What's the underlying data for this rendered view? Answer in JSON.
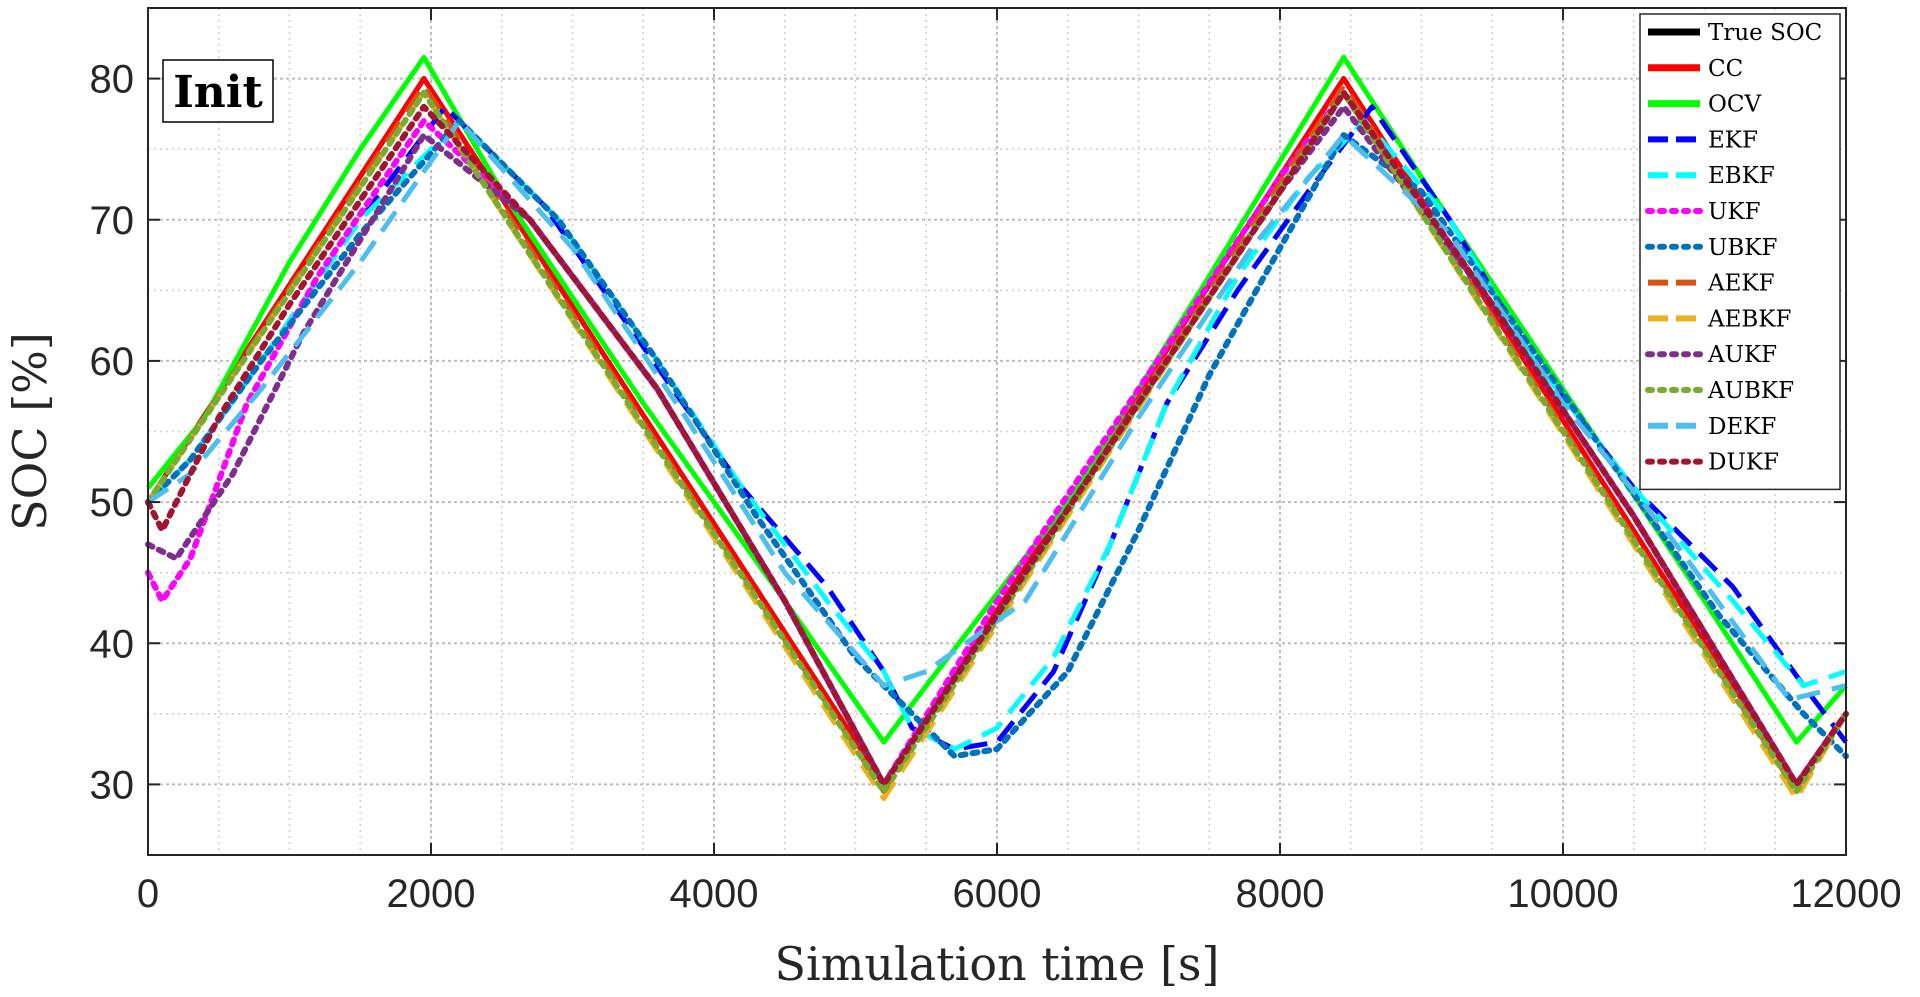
{
  "chart_data": {
    "type": "line",
    "xlabel": "Simulation time [s]",
    "ylabel": "SOC [%]",
    "xlim": [
      0,
      12000
    ],
    "ylim": [
      25,
      85
    ],
    "xticks": [
      0,
      2000,
      4000,
      6000,
      8000,
      10000,
      12000
    ],
    "yticks": [
      30,
      40,
      50,
      60,
      70,
      80
    ],
    "grid": true,
    "legend_position": "top-right",
    "annotation": "Init",
    "series": [
      {
        "name": "True SOC",
        "color": "#000000",
        "style": "solid",
        "x": [
          0,
          1950,
          5200,
          8450,
          11650,
          12000
        ],
        "y": [
          50,
          80,
          30,
          80,
          30,
          35
        ]
      },
      {
        "name": "CC",
        "color": "#ff0000",
        "style": "solid",
        "x": [
          0,
          1950,
          5200,
          8450,
          11650,
          12000
        ],
        "y": [
          50,
          80,
          30,
          80,
          30,
          35
        ]
      },
      {
        "name": "OCV",
        "color": "#00ff00",
        "style": "solid",
        "x": [
          0,
          400,
          1000,
          1500,
          1950,
          2500,
          3500,
          4500,
          5200,
          5500,
          6500,
          7500,
          8450,
          9000,
          10000,
          11000,
          11650,
          12000
        ],
        "y": [
          51,
          56,
          67,
          75,
          81.5,
          72,
          57,
          43,
          33,
          37,
          50,
          66,
          81.5,
          73,
          58,
          43,
          33,
          37
        ]
      },
      {
        "name": "EKF",
        "color": "#0000ff",
        "style": "dash",
        "x": [
          0,
          300,
          800,
          1500,
          2100,
          2800,
          3500,
          4200,
          4800,
          5200,
          5400,
          5700,
          6000,
          6400,
          6800,
          7200,
          7700,
          8200,
          8650,
          9200,
          9800,
          10500,
          11200,
          11700,
          12000
        ],
        "y": [
          50,
          53,
          60,
          70,
          78,
          71,
          61,
          51,
          44,
          38,
          34,
          32.5,
          33,
          38,
          47,
          57,
          65,
          72,
          78,
          70,
          60,
          51,
          44,
          37,
          33
        ]
      },
      {
        "name": "EBKF",
        "color": "#00ffff",
        "style": "dash",
        "x": [
          0,
          300,
          800,
          1500,
          2200,
          2900,
          3600,
          4200,
          4800,
          5200,
          5400,
          5700,
          6000,
          6400,
          6800,
          7200,
          7700,
          8200,
          8600,
          9200,
          9800,
          10500,
          11200,
          11700,
          12000
        ],
        "y": [
          50,
          53,
          60,
          70,
          77,
          70,
          60,
          51,
          43,
          38,
          34,
          32.5,
          34,
          39,
          47,
          57,
          66,
          73,
          77,
          70,
          60,
          51,
          43,
          37,
          38
        ]
      },
      {
        "name": "UKF",
        "color": "#ff00ff",
        "style": "dot",
        "x": [
          0,
          100,
          300,
          700,
          1200,
          1950,
          2700,
          3600,
          4500,
          5200,
          6000,
          7000,
          8000,
          8450,
          9500,
          10500,
          11650,
          12000
        ],
        "y": [
          45,
          43,
          46,
          57,
          66,
          77,
          70,
          58,
          43,
          30,
          43,
          58,
          73,
          79,
          64,
          49,
          30,
          35
        ]
      },
      {
        "name": "UBKF",
        "color": "#0072bd",
        "style": "dot",
        "x": [
          0,
          300,
          800,
          1500,
          2200,
          2900,
          3600,
          4300,
          5000,
          5500,
          5700,
          6000,
          6500,
          7000,
          7500,
          8000,
          8450,
          9000,
          9700,
          10400,
          11100,
          11700,
          12000
        ],
        "y": [
          50,
          53,
          60,
          69,
          77,
          70,
          60,
          49,
          39,
          34,
          32,
          32.5,
          38,
          48,
          59,
          68,
          76,
          72,
          62,
          52,
          42,
          35,
          32
        ]
      },
      {
        "name": "AEKF",
        "color": "#d95319",
        "style": "dash",
        "x": [
          0,
          1950,
          5200,
          8450,
          11650,
          12000
        ],
        "y": [
          50,
          79.5,
          29.5,
          79.5,
          29.5,
          35
        ]
      },
      {
        "name": "AEBKF",
        "color": "#edb120",
        "style": "dash",
        "x": [
          0,
          1950,
          5200,
          8450,
          11650,
          12000
        ],
        "y": [
          50,
          79,
          29,
          79,
          29,
          35
        ]
      },
      {
        "name": "AUKF",
        "color": "#7e2f8e",
        "style": "dot",
        "x": [
          0,
          200,
          600,
          1100,
          1950,
          2700,
          3600,
          4500,
          5200,
          6000,
          7000,
          8000,
          8450,
          9500,
          10500,
          11650,
          12000
        ],
        "y": [
          47,
          46,
          52,
          62,
          76,
          70,
          58,
          43,
          30,
          42,
          57,
          72,
          78,
          64,
          49,
          30,
          35
        ]
      },
      {
        "name": "AUBKF",
        "color": "#77ac30",
        "style": "dot",
        "x": [
          0,
          1950,
          5200,
          8450,
          11650,
          12000
        ],
        "y": [
          50,
          79,
          29.5,
          79,
          29.5,
          35
        ]
      },
      {
        "name": "DEKF",
        "color": "#4dbeee",
        "style": "dash",
        "x": [
          0,
          300,
          800,
          1500,
          2200,
          3000,
          3800,
          4500,
          5200,
          5500,
          6200,
          7000,
          7800,
          8450,
          9200,
          10000,
          10800,
          11600,
          12000
        ],
        "y": [
          50,
          52,
          58,
          67,
          77,
          68,
          56,
          45,
          37,
          38,
          43,
          56,
          68,
          76,
          69,
          57,
          47,
          36,
          37
        ]
      },
      {
        "name": "DUKF",
        "color": "#a2142f",
        "style": "dot",
        "x": [
          0,
          100,
          500,
          1000,
          1950,
          2700,
          3600,
          4500,
          5200,
          6000,
          7000,
          8000,
          8450,
          9500,
          10500,
          11650,
          12000
        ],
        "y": [
          50,
          48,
          56,
          64,
          78,
          70,
          58,
          43,
          30,
          42,
          57,
          72,
          79,
          64,
          49,
          30,
          35
        ]
      }
    ]
  }
}
